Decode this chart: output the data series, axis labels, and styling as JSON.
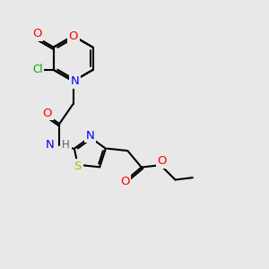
{
  "background_color": "#e8e8e8",
  "bond_color": "#000000",
  "bond_width": 1.5,
  "atom_colors": {
    "O": "#ff0000",
    "N": "#0000ff",
    "S": "#b8b800",
    "Cl": "#00aa00",
    "C": "#000000",
    "H": "#606060"
  },
  "font_size": 8.5,
  "fig_width": 3.0,
  "fig_height": 3.0,
  "dpi": 100,
  "xlim": [
    0,
    10
  ],
  "ylim": [
    0,
    10
  ]
}
